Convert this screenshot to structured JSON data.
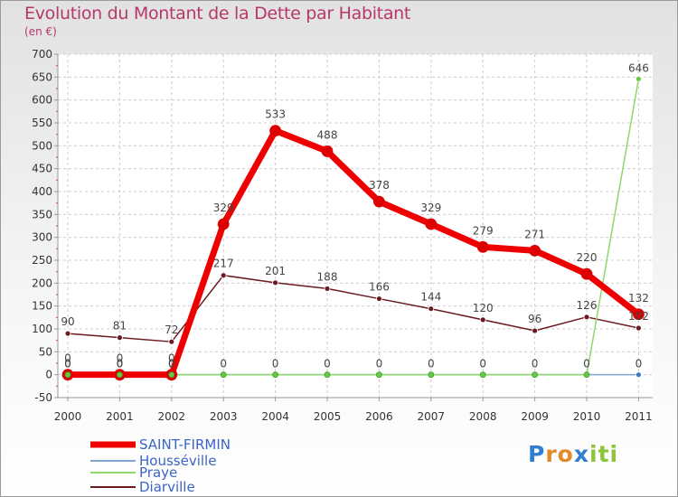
{
  "title": "Evolution du Montant de la Dette par Habitant",
  "unit": "(en €)",
  "logo": {
    "text": "Proxiti",
    "letter_colors": [
      "#2e7fd0",
      "#e08a2a",
      "#e08a2a",
      "#2e7fd0",
      "#8cc43a",
      "#8cc43a",
      "#8cc43a"
    ]
  },
  "chart_data": {
    "type": "line",
    "x": [
      "2000",
      "2001",
      "2002",
      "2003",
      "2004",
      "2005",
      "2006",
      "2007",
      "2008",
      "2009",
      "2010",
      "2011"
    ],
    "ylim": [
      -50,
      700
    ],
    "yticks": [
      -50,
      0,
      50,
      100,
      150,
      200,
      250,
      300,
      350,
      400,
      450,
      500,
      550,
      600,
      650,
      700
    ],
    "grid": true,
    "legend_position": "bottom-left",
    "series": [
      {
        "name": "SAINT-FIRMIN",
        "color": "#ee0000",
        "values": [
          0,
          0,
          0,
          329,
          533,
          488,
          378,
          329,
          279,
          271,
          220,
          132
        ]
      },
      {
        "name": "Housséville",
        "color": "#7ea6cc",
        "values": [
          0,
          0,
          0,
          0,
          0,
          0,
          0,
          0,
          0,
          0,
          0,
          0
        ]
      },
      {
        "name": "Praye",
        "color": "#8ed86c",
        "values": [
          0,
          0,
          0,
          0,
          0,
          0,
          0,
          0,
          0,
          0,
          0,
          646
        ]
      },
      {
        "name": "Diarville",
        "color": "#6b1a20",
        "values": [
          90,
          81,
          72,
          217,
          201,
          188,
          166,
          144,
          120,
          96,
          126,
          102
        ]
      }
    ],
    "data_labels": [
      {
        "series": "SAINT-FIRMIN",
        "labels": [
          "0",
          "0",
          "0",
          "329",
          "533",
          "488",
          "378",
          "329",
          "279",
          "271",
          "220",
          "132"
        ]
      },
      {
        "series": "Housséville",
        "labels": [
          "0",
          "0",
          "0",
          "",
          "",
          "",
          "",
          "",
          "",
          "",
          "",
          "0"
        ]
      },
      {
        "series": "Praye",
        "labels": [
          "0",
          "0",
          "0",
          "0",
          "0",
          "0",
          "0",
          "0",
          "0",
          "0",
          "0",
          "646"
        ]
      },
      {
        "series": "Diarville",
        "labels": [
          "90",
          "81",
          "72",
          "217",
          "201",
          "188",
          "166",
          "144",
          "120",
          "96",
          "126",
          "102"
        ]
      }
    ]
  }
}
